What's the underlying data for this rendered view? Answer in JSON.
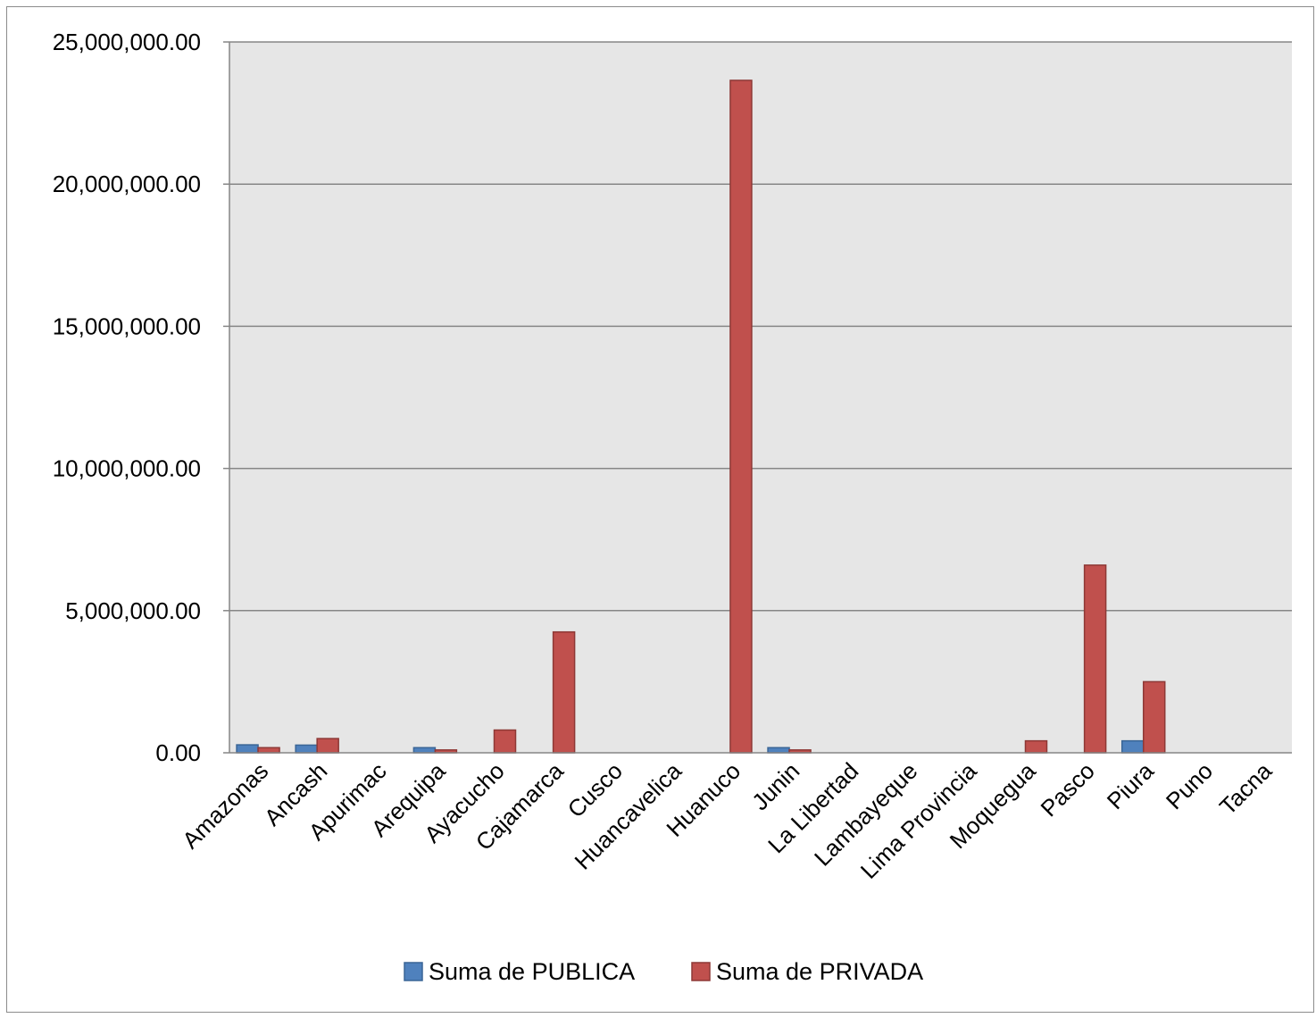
{
  "chart_data": {
    "type": "bar",
    "categories": [
      "Amazonas",
      "Ancash",
      "Apurimac",
      "Arequipa",
      "Ayacucho",
      "Cajamarca",
      "Cusco",
      "Huancavelica",
      "Huanuco",
      "Junin",
      "La Libertad",
      "Lambayeque",
      "Lima Provincia",
      "Moquegua",
      "Pasco",
      "Piura",
      "Puno",
      "Tacna"
    ],
    "series": [
      {
        "name": "Suma de PUBLICA",
        "color": "#4f81bd",
        "values": [
          280000,
          270000,
          0,
          180000,
          0,
          0,
          0,
          0,
          0,
          180000,
          0,
          0,
          0,
          0,
          0,
          420000,
          0,
          0
        ]
      },
      {
        "name": "Suma de PRIVADA",
        "color": "#c0504d",
        "values": [
          180000,
          500000,
          0,
          100000,
          800000,
          4250000,
          0,
          0,
          23650000,
          100000,
          0,
          0,
          0,
          420000,
          6600000,
          2500000,
          0,
          0
        ]
      }
    ],
    "ylim": [
      0,
      25000000
    ],
    "yticks": [
      "0.00",
      "5,000,000.00",
      "10,000,000.00",
      "15,000,000.00",
      "20,000,000.00",
      "25,000,000.00"
    ],
    "title": "",
    "xlabel": "",
    "ylabel": "",
    "grid": true,
    "legend": "bottom",
    "plot_background": "#e6e6e6"
  }
}
